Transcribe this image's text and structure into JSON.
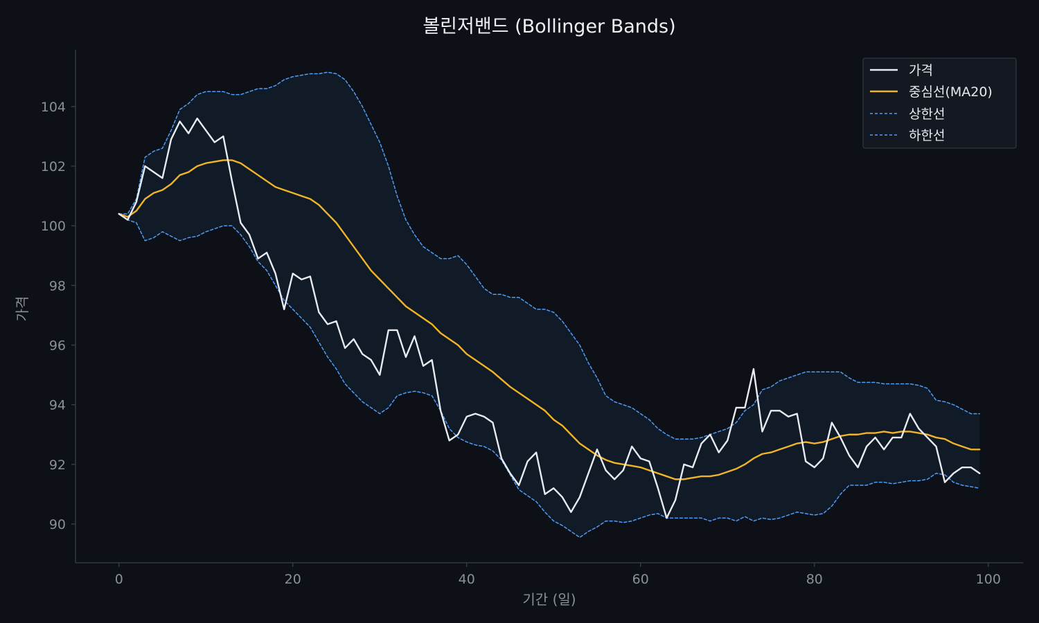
{
  "chart_data": {
    "type": "line",
    "title": "볼린저밴드 (Bollinger Bands)",
    "xlabel": "기간 (일)",
    "ylabel": "가격",
    "xlim": [
      -5,
      104
    ],
    "ylim": [
      88.7,
      105.9
    ],
    "xticks": [
      0,
      20,
      40,
      60,
      80,
      100
    ],
    "yticks": [
      90,
      92,
      94,
      96,
      98,
      100,
      102,
      104
    ],
    "grid": false,
    "legend_position": "top-right",
    "band_fill_color": "#111a27",
    "series": [
      {
        "name": "가격",
        "key": "price",
        "color": "#e8ecf2",
        "style": "solid",
        "values": [
          100.4,
          100.2,
          100.8,
          102.0,
          101.8,
          101.6,
          102.9,
          103.5,
          103.1,
          103.6,
          103.2,
          102.8,
          103.0,
          101.5,
          100.1,
          99.7,
          98.9,
          99.1,
          98.4,
          97.2,
          98.4,
          98.2,
          98.3,
          97.1,
          96.7,
          96.8,
          95.9,
          96.2,
          95.7,
          95.5,
          95.0,
          96.5,
          96.5,
          95.6,
          96.3,
          95.3,
          95.5,
          93.8,
          92.8,
          93.0,
          93.6,
          93.7,
          93.6,
          93.4,
          92.2,
          91.7,
          91.3,
          92.1,
          92.4,
          91.0,
          91.2,
          90.9,
          90.4,
          90.9,
          91.7,
          92.5,
          91.8,
          91.5,
          91.8,
          92.6,
          92.2,
          92.1,
          91.2,
          90.2,
          90.8,
          92.0,
          91.9,
          92.7,
          93.0,
          92.4,
          92.8,
          93.9,
          93.9,
          95.2,
          93.1,
          93.8,
          93.8,
          93.6,
          93.7,
          92.1,
          91.9,
          92.2,
          93.4,
          92.9,
          92.3,
          91.9,
          92.6,
          92.9,
          92.5,
          92.9,
          92.9,
          93.7,
          93.2,
          92.9,
          92.6,
          91.4,
          91.7,
          91.9,
          91.9,
          91.7
        ]
      },
      {
        "name": "중심선(MA20)",
        "key": "ma",
        "color": "#f0b429",
        "style": "solid",
        "values": [
          100.4,
          100.3,
          100.5,
          100.9,
          101.1,
          101.2,
          101.4,
          101.7,
          101.8,
          102.0,
          102.1,
          102.15,
          102.2,
          102.2,
          102.1,
          101.9,
          101.7,
          101.5,
          101.3,
          101.2,
          101.1,
          101.0,
          100.9,
          100.7,
          100.4,
          100.1,
          99.7,
          99.3,
          98.9,
          98.5,
          98.2,
          97.9,
          97.6,
          97.3,
          97.1,
          96.9,
          96.7,
          96.4,
          96.2,
          96.0,
          95.7,
          95.5,
          95.3,
          95.1,
          94.85,
          94.6,
          94.4,
          94.2,
          94.0,
          93.8,
          93.5,
          93.3,
          93.0,
          92.7,
          92.5,
          92.3,
          92.15,
          92.05,
          92.0,
          91.95,
          91.9,
          91.8,
          91.7,
          91.6,
          91.5,
          91.5,
          91.55,
          91.6,
          91.6,
          91.65,
          91.75,
          91.85,
          92.0,
          92.2,
          92.35,
          92.4,
          92.5,
          92.6,
          92.7,
          92.75,
          92.7,
          92.75,
          92.85,
          92.95,
          93.0,
          93.0,
          93.05,
          93.05,
          93.1,
          93.05,
          93.1,
          93.1,
          93.05,
          93.0,
          92.9,
          92.85,
          92.7,
          92.6,
          92.5,
          92.5
        ]
      },
      {
        "name": "상한선",
        "key": "upper",
        "color": "#4f9df5",
        "style": "dashed",
        "values": [
          100.4,
          100.4,
          100.9,
          102.3,
          102.5,
          102.6,
          103.2,
          103.9,
          104.1,
          104.4,
          104.5,
          104.5,
          104.5,
          104.4,
          104.4,
          104.5,
          104.6,
          104.6,
          104.7,
          104.9,
          105.0,
          105.05,
          105.1,
          105.1,
          105.15,
          105.1,
          104.9,
          104.5,
          104.0,
          103.4,
          102.8,
          102.0,
          101.0,
          100.2,
          99.7,
          99.3,
          99.1,
          98.9,
          98.9,
          99.0,
          98.7,
          98.3,
          97.9,
          97.7,
          97.7,
          97.6,
          97.6,
          97.4,
          97.2,
          97.2,
          97.1,
          96.8,
          96.4,
          96.0,
          95.4,
          94.9,
          94.3,
          94.1,
          94.0,
          93.9,
          93.7,
          93.5,
          93.2,
          93.0,
          92.85,
          92.85,
          92.85,
          92.9,
          93.0,
          93.1,
          93.2,
          93.4,
          93.8,
          94.0,
          94.5,
          94.6,
          94.8,
          94.9,
          95.0,
          95.1,
          95.1,
          95.1,
          95.1,
          95.1,
          94.9,
          94.75,
          94.75,
          94.75,
          94.7,
          94.7,
          94.7,
          94.7,
          94.65,
          94.55,
          94.15,
          94.1,
          94.0,
          93.85,
          93.7,
          93.7
        ]
      },
      {
        "name": "하한선",
        "key": "lower",
        "color": "#4f9df5",
        "style": "dashed",
        "values": [
          100.4,
          100.2,
          100.1,
          99.5,
          99.6,
          99.8,
          99.65,
          99.5,
          99.6,
          99.65,
          99.8,
          99.9,
          100.0,
          100.0,
          99.7,
          99.3,
          98.8,
          98.5,
          98.0,
          97.5,
          97.2,
          96.9,
          96.6,
          96.1,
          95.6,
          95.2,
          94.7,
          94.4,
          94.1,
          93.9,
          93.7,
          93.9,
          94.3,
          94.4,
          94.45,
          94.4,
          94.3,
          93.8,
          93.2,
          92.9,
          92.75,
          92.65,
          92.6,
          92.45,
          92.15,
          91.65,
          91.15,
          90.95,
          90.75,
          90.4,
          90.1,
          89.95,
          89.75,
          89.55,
          89.75,
          89.9,
          90.1,
          90.1,
          90.05,
          90.1,
          90.2,
          90.3,
          90.35,
          90.2,
          90.2,
          90.2,
          90.2,
          90.2,
          90.1,
          90.2,
          90.2,
          90.1,
          90.25,
          90.1,
          90.2,
          90.15,
          90.2,
          90.3,
          90.4,
          90.35,
          90.3,
          90.35,
          90.6,
          91.0,
          91.3,
          91.3,
          91.3,
          91.4,
          91.4,
          91.35,
          91.4,
          91.45,
          91.45,
          91.5,
          91.7,
          91.65,
          91.4,
          91.3,
          91.25,
          91.2
        ]
      }
    ]
  }
}
